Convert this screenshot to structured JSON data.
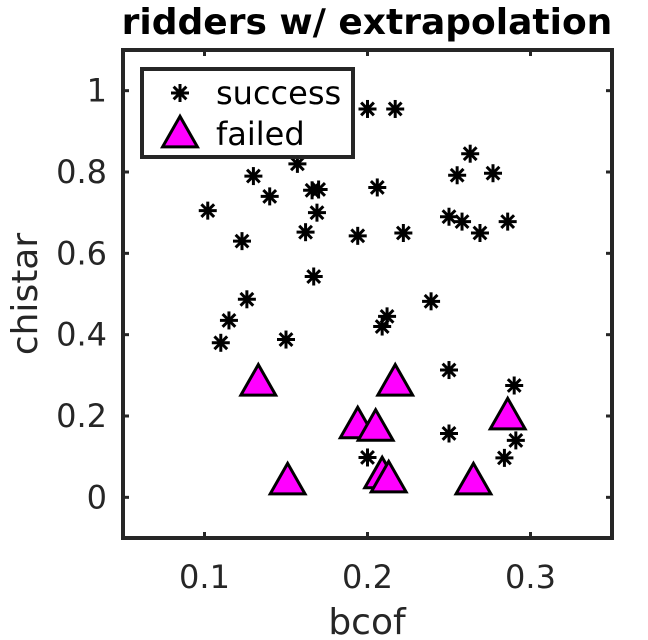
{
  "chart_data": {
    "type": "scatter",
    "title": "ridders w/ extrapolation",
    "xlabel": "bcof",
    "ylabel": "chistar",
    "xlim": [
      0.05,
      0.35
    ],
    "ylim": [
      -0.1,
      1.1
    ],
    "xticks": [
      0.1,
      0.2,
      0.3
    ],
    "xtick_labels": [
      "0.1",
      "0.2",
      "0.3"
    ],
    "yticks": [
      0,
      0.2,
      0.4,
      0.6,
      0.8,
      1
    ],
    "ytick_labels": [
      "0",
      "0.2",
      "0.4",
      "0.6",
      "0.8",
      "1"
    ],
    "grid": false,
    "legend_position": "top-left",
    "series": [
      {
        "name": "success",
        "marker": "asterisk",
        "color": "#000000",
        "points": [
          [
            0.102,
            0.705
          ],
          [
            0.11,
            0.38
          ],
          [
            0.115,
            0.435
          ],
          [
            0.123,
            0.63
          ],
          [
            0.126,
            0.487
          ],
          [
            0.13,
            0.79
          ],
          [
            0.14,
            0.74
          ],
          [
            0.15,
            0.388
          ],
          [
            0.157,
            0.82
          ],
          [
            0.162,
            0.652
          ],
          [
            0.166,
            0.755
          ],
          [
            0.167,
            0.543
          ],
          [
            0.169,
            0.7
          ],
          [
            0.17,
            0.757
          ],
          [
            0.194,
            0.643
          ],
          [
            0.2,
            0.955
          ],
          [
            0.2,
            0.098
          ],
          [
            0.206,
            0.762
          ],
          [
            0.209,
            0.42
          ],
          [
            0.212,
            0.445
          ],
          [
            0.217,
            0.955
          ],
          [
            0.222,
            0.65
          ],
          [
            0.239,
            0.482
          ],
          [
            0.25,
            0.69
          ],
          [
            0.25,
            0.313
          ],
          [
            0.25,
            0.157
          ],
          [
            0.255,
            0.792
          ],
          [
            0.258,
            0.678
          ],
          [
            0.263,
            0.845
          ],
          [
            0.269,
            0.65
          ],
          [
            0.277,
            0.797
          ],
          [
            0.284,
            0.097
          ],
          [
            0.286,
            0.678
          ],
          [
            0.29,
            0.275
          ],
          [
            0.291,
            0.14
          ]
        ]
      },
      {
        "name": "failed",
        "marker": "triangle",
        "color": "#ff00ff",
        "points": [
          [
            0.133,
            0.283
          ],
          [
            0.151,
            0.04
          ],
          [
            0.194,
            0.178
          ],
          [
            0.205,
            0.172
          ],
          [
            0.209,
            0.055
          ],
          [
            0.213,
            0.045
          ],
          [
            0.217,
            0.283
          ],
          [
            0.265,
            0.04
          ],
          [
            0.286,
            0.2
          ]
        ]
      }
    ]
  }
}
